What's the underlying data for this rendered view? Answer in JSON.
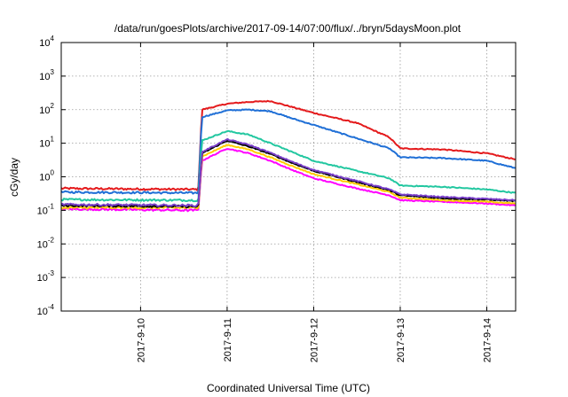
{
  "chart_data": {
    "type": "line",
    "title": "/data/run/goesPlots/archive/2017-09-14/07:00/flux/../bryn/5daysMoon.plot",
    "xlabel": "Coordinated Universal Time (UTC)",
    "ylabel": "cGy/day",
    "yscale": "log",
    "ylim": [
      0.0001,
      10000
    ],
    "xlim": [
      "2017-09-09 02:00",
      "2017-09-14 08:00"
    ],
    "grid": true,
    "x_ticks": [
      "2017-9-10",
      "2017-9-11",
      "2017-9-12",
      "2017-9-13",
      "2017-9-14"
    ],
    "y_ticks": [
      {
        "base": "10",
        "exp": "4"
      },
      {
        "base": "10",
        "exp": "3"
      },
      {
        "base": "10",
        "exp": "2"
      },
      {
        "base": "10",
        "exp": "1"
      },
      {
        "base": "10",
        "exp": "0"
      },
      {
        "base": "10",
        "exp": "-1"
      },
      {
        "base": "10",
        "exp": "-2"
      },
      {
        "base": "10",
        "exp": "-3"
      },
      {
        "base": "10",
        "exp": "-4"
      }
    ],
    "x": [
      "2017-09-09 02:00",
      "2017-09-10 15:00",
      "2017-09-10 16:00",
      "2017-09-10 17:00",
      "2017-09-11 00:00",
      "2017-09-11 06:00",
      "2017-09-11 12:00",
      "2017-09-11 18:00",
      "2017-09-12 00:00",
      "2017-09-12 12:00",
      "2017-09-12 21:00",
      "2017-09-13 00:00",
      "2017-09-13 12:00",
      "2017-09-14 00:00",
      "2017-09-14 08:00"
    ],
    "series": [
      {
        "color": "#e41a1c",
        "values": [
          0.45,
          0.42,
          0.42,
          100,
          150,
          170,
          180,
          120,
          80,
          40,
          15,
          7,
          6.5,
          5,
          3.3
        ]
      },
      {
        "color": "#1f6fd6",
        "values": [
          0.35,
          0.33,
          0.33,
          60,
          95,
          100,
          90,
          55,
          35,
          14,
          7,
          3.8,
          3.6,
          3,
          1.8
        ]
      },
      {
        "color": "#22c7a0",
        "values": [
          0.21,
          0.2,
          0.2,
          12,
          23,
          18,
          10,
          5.5,
          3,
          1.5,
          0.9,
          0.55,
          0.5,
          0.42,
          0.33
        ]
      },
      {
        "color": "#ff00ff",
        "values": [
          0.11,
          0.1,
          0.1,
          3,
          7,
          5,
          3,
          1.6,
          0.9,
          0.45,
          0.28,
          0.2,
          0.18,
          0.16,
          0.14
        ]
      },
      {
        "color": "#ffcc00",
        "values": [
          0.12,
          0.12,
          0.12,
          4,
          9,
          6.5,
          3.8,
          2.1,
          1.2,
          0.6,
          0.35,
          0.24,
          0.2,
          0.18,
          0.16
        ]
      },
      {
        "color": "#000000",
        "values": [
          0.14,
          0.13,
          0.13,
          5,
          12,
          8,
          4.8,
          2.6,
          1.5,
          0.7,
          0.4,
          0.28,
          0.23,
          0.21,
          0.19
        ]
      },
      {
        "color": "#7a3fc9",
        "values": [
          0.15,
          0.14,
          0.14,
          5.5,
          13,
          9,
          5.2,
          2.8,
          1.6,
          0.75,
          0.42,
          0.3,
          0.25,
          0.22,
          0.2
        ]
      }
    ]
  }
}
